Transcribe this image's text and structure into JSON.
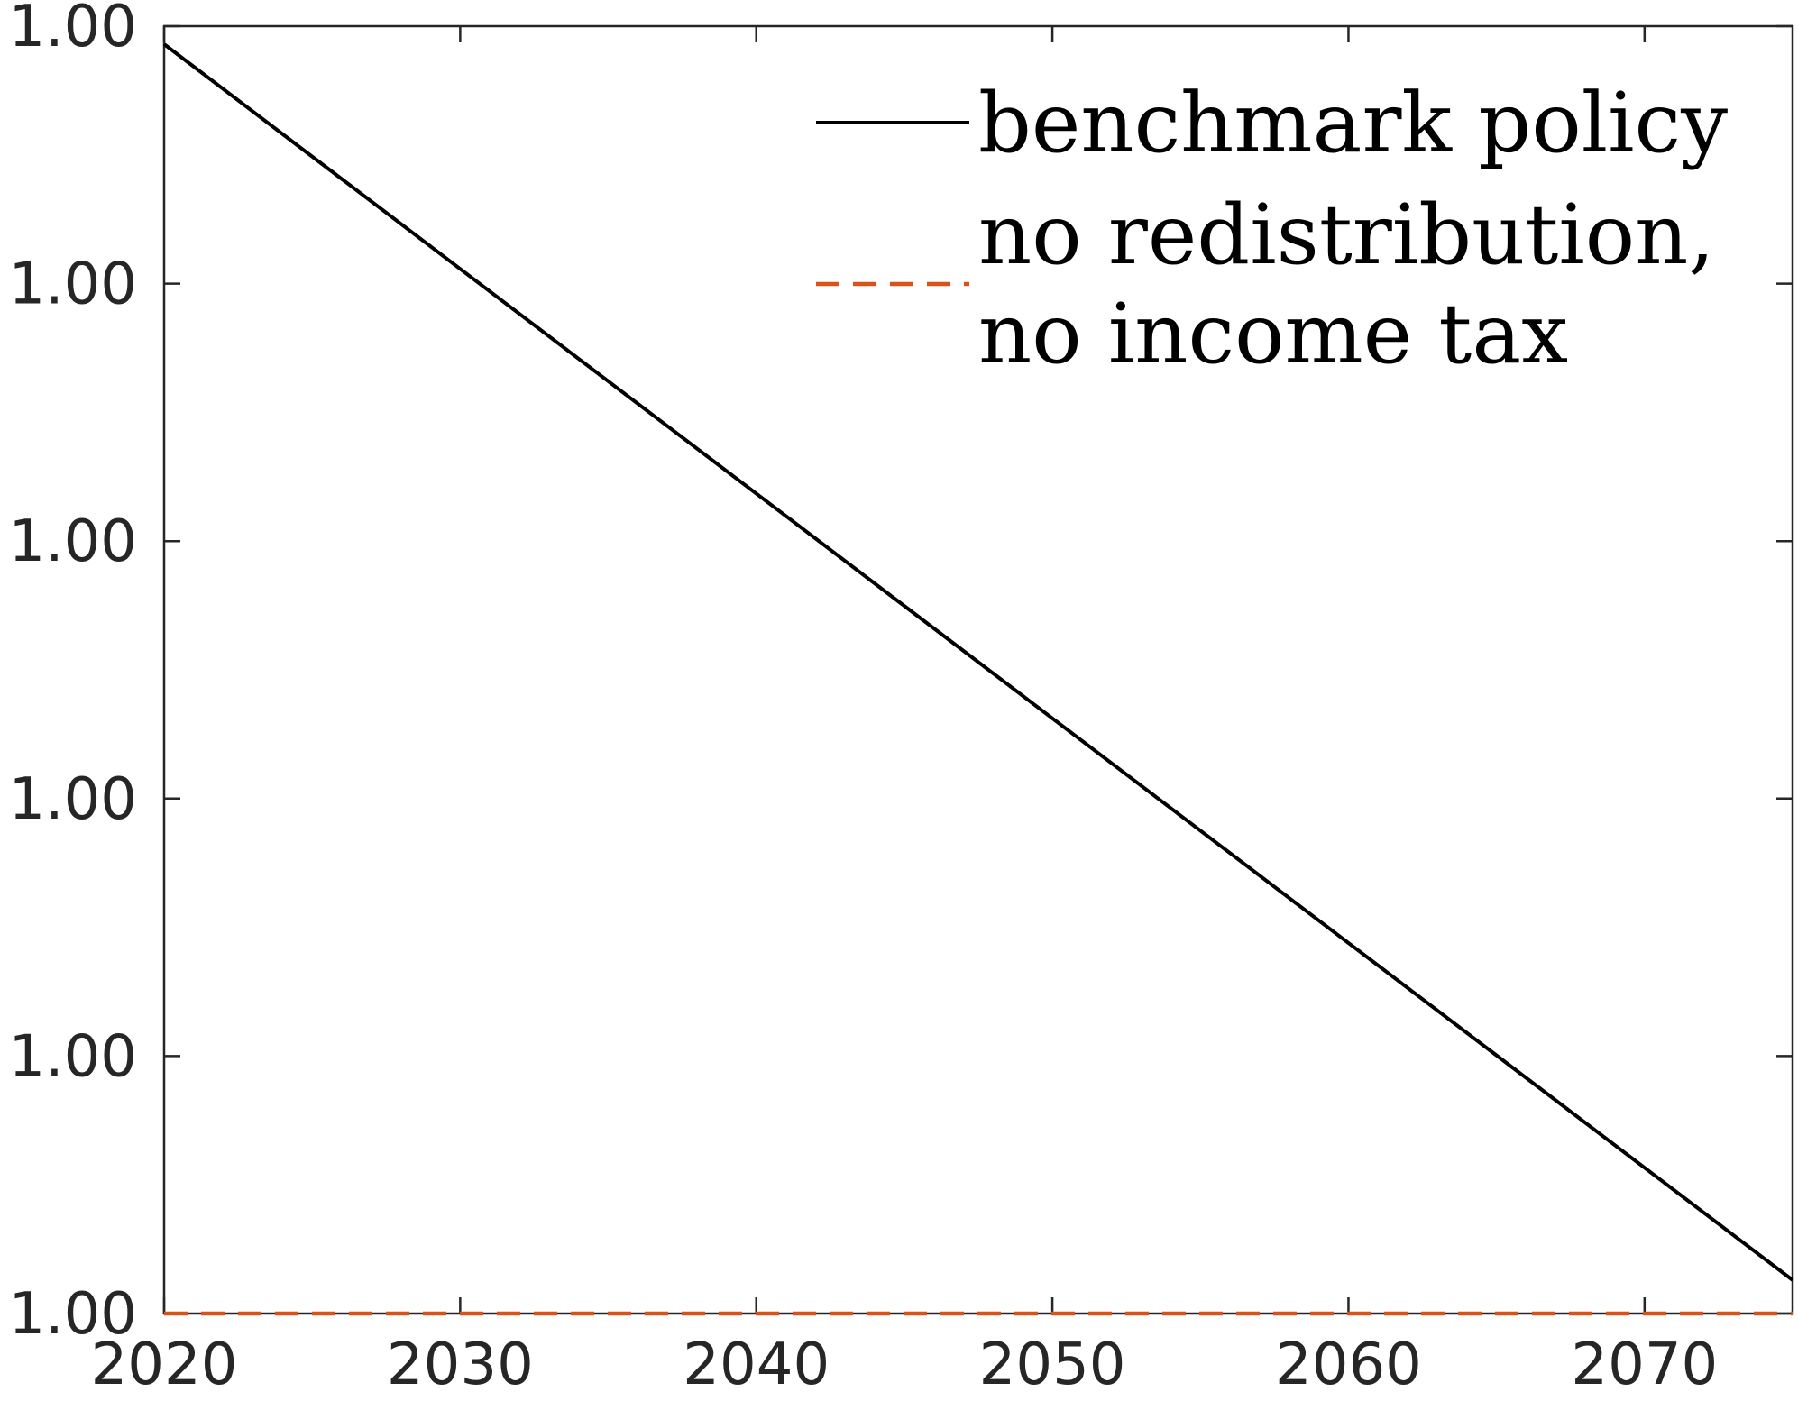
{
  "chart_data": {
    "type": "line",
    "x_ticks": [
      "2020",
      "2030",
      "2040",
      "2050",
      "2060",
      "2070"
    ],
    "y_ticks": [
      "1.00",
      "1.00",
      "1.00",
      "1.00",
      "1.00",
      "1.00"
    ],
    "xlim": [
      2020,
      2075
    ],
    "ylim": [
      0,
      5
    ],
    "series": [
      {
        "name_lines": [
          "benchmark policy"
        ],
        "color": "#000000",
        "style": "solid",
        "x": [
          2020,
          2075
        ],
        "y": [
          4.93,
          0.13
        ]
      },
      {
        "name_lines": [
          "no redistribution,",
          "no income tax"
        ],
        "color": "#D95319",
        "style": "dashed",
        "x": [
          2020,
          2075
        ],
        "y": [
          0,
          0
        ]
      }
    ],
    "grid": false,
    "legend_position": "top-right"
  }
}
